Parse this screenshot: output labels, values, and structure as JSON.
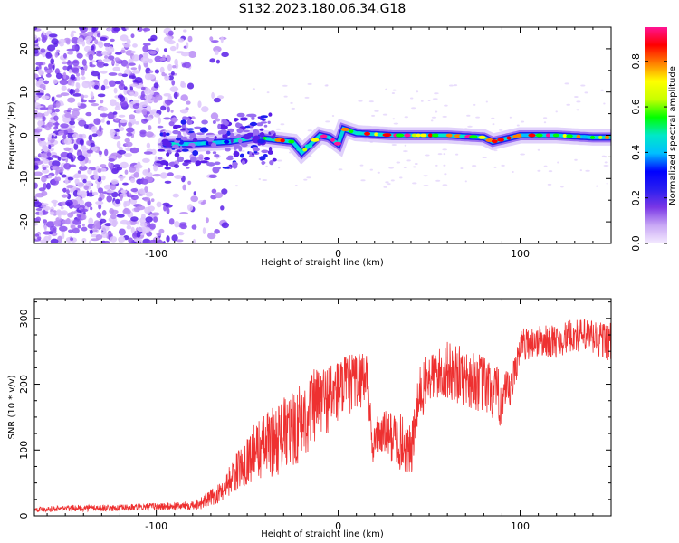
{
  "figure": {
    "title": "S132.2023.180.06.34.G18"
  },
  "chart_data": [
    {
      "type": "heatmap",
      "name": "spectrogram",
      "xlabel": "Height of straight line (km)",
      "ylabel": "Frequency (Hz)",
      "xlim": [
        -167,
        150
      ],
      "ylim": [
        -25,
        25
      ],
      "xticks": [
        -100,
        0,
        100
      ],
      "yticks": [
        -20,
        -10,
        0,
        10,
        20
      ],
      "colorbar": {
        "label": "Normalized spectral amplitude",
        "range": [
          0.0,
          0.95
        ],
        "ticks": [
          "0.0",
          "0.2",
          "0.4",
          "0.6",
          "0.8"
        ],
        "colormap": [
          "#f4eaff",
          "#c9a8f5",
          "#7a37e6",
          "#2a1ef0",
          "#0000ff",
          "#00bfff",
          "#00e8c8",
          "#00ff00",
          "#c8ff00",
          "#ffff00",
          "#ff8000",
          "#ff0000",
          "#ff1493"
        ]
      },
      "ridge": {
        "description_points_x": [
          -95,
          -80,
          -60,
          -45,
          -35,
          -25,
          -20,
          -15,
          -10,
          -5,
          0,
          3,
          10,
          30,
          60,
          80,
          85,
          90,
          100,
          120,
          140,
          150
        ],
        "description_points_y": [
          -2,
          -2,
          -1.5,
          -0.5,
          -1,
          -1.5,
          -4,
          -2,
          0,
          -0.5,
          -2,
          1.5,
          0.5,
          0,
          0,
          -0.5,
          -1.5,
          -1,
          0,
          0,
          -0.5,
          -0.5
        ]
      },
      "grid": false
    },
    {
      "type": "line",
      "name": "snr",
      "xlabel": "Height of straight line (km)",
      "ylabel": "SNR (10 * v/v)",
      "xlim": [
        -167,
        150
      ],
      "ylim": [
        0,
        330
      ],
      "xticks": [
        -100,
        0,
        100
      ],
      "yticks": [
        0,
        100,
        200,
        300
      ],
      "color": "#ee3030",
      "series": [
        {
          "x": [
            -167,
            -140,
            -120,
            -100,
            -85,
            -75,
            -65,
            -55,
            -45,
            -35,
            -25,
            -15,
            -10,
            -5,
            0,
            10,
            16,
            19,
            20,
            25,
            30,
            35,
            40,
            45,
            50,
            55,
            60,
            70,
            80,
            90,
            95,
            100,
            110,
            120,
            130,
            140,
            150
          ],
          "y": [
            10,
            12,
            12,
            14,
            15,
            20,
            35,
            70,
            100,
            115,
            130,
            160,
            175,
            180,
            190,
            205,
            215,
            90,
            120,
            125,
            120,
            110,
            95,
            185,
            210,
            215,
            220,
            210,
            200,
            175,
            190,
            260,
            265,
            265,
            275,
            270,
            265
          ],
          "spread": [
            4,
            5,
            5,
            6,
            6,
            10,
            15,
            30,
            45,
            55,
            60,
            60,
            55,
            55,
            50,
            45,
            45,
            15,
            30,
            35,
            40,
            45,
            40,
            45,
            40,
            40,
            45,
            45,
            45,
            45,
            30,
            25,
            25,
            25,
            25,
            30,
            30
          ]
        }
      ],
      "grid": false
    }
  ]
}
